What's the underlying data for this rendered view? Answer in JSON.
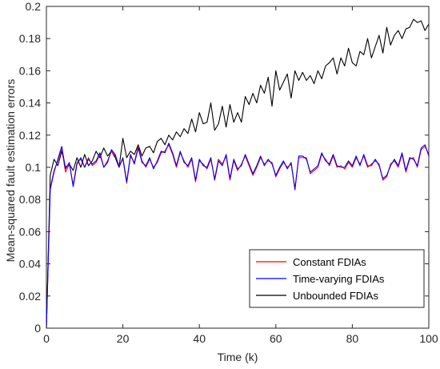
{
  "chart_data": {
    "type": "line",
    "xlabel": "Time (k)",
    "ylabel": "Mean-squared fault estimation errors",
    "xlim": [
      0,
      100
    ],
    "ylim": [
      0,
      0.2
    ],
    "xticks": [
      "0",
      "20",
      "40",
      "60",
      "80",
      "100"
    ],
    "yticks": [
      "0",
      "0.02",
      "0.04",
      "0.06",
      "0.08",
      "0.1",
      "0.12",
      "0.14",
      "0.16",
      "0.18",
      "0.2"
    ],
    "grid": false,
    "legend_position": "bottom-right",
    "x": [
      0,
      1,
      2,
      3,
      4,
      5,
      6,
      7,
      8,
      9,
      10,
      11,
      12,
      13,
      14,
      15,
      16,
      17,
      18,
      19,
      20,
      21,
      22,
      23,
      24,
      25,
      26,
      27,
      28,
      29,
      30,
      31,
      32,
      33,
      34,
      35,
      36,
      37,
      38,
      39,
      40,
      41,
      42,
      43,
      44,
      45,
      46,
      47,
      48,
      49,
      50,
      51,
      52,
      53,
      54,
      55,
      56,
      57,
      58,
      59,
      60,
      61,
      62,
      63,
      64,
      65,
      66,
      67,
      68,
      69,
      70,
      71,
      72,
      73,
      74,
      75,
      76,
      77,
      78,
      79,
      80,
      81,
      82,
      83,
      84,
      85,
      86,
      87,
      88,
      89,
      90,
      91,
      92,
      93,
      94,
      95,
      96,
      97,
      98,
      99,
      100
    ],
    "series": [
      {
        "name": "Constant FDIAs",
        "color": "#ff0000",
        "values": [
          0.0,
          0.087,
          0.098,
          0.104,
          0.112,
          0.097,
          0.102,
          0.089,
          0.103,
          0.105,
          0.1,
          0.106,
          0.101,
          0.103,
          0.108,
          0.1,
          0.104,
          0.11,
          0.107,
          0.101,
          0.105,
          0.09,
          0.107,
          0.103,
          0.113,
          0.104,
          0.1,
          0.105,
          0.1,
          0.103,
          0.109,
          0.11,
          0.114,
          0.108,
          0.1,
          0.109,
          0.104,
          0.1,
          0.105,
          0.091,
          0.104,
          0.102,
          0.099,
          0.105,
          0.093,
          0.105,
          0.102,
          0.107,
          0.092,
          0.104,
          0.098,
          0.102,
          0.107,
          0.101,
          0.095,
          0.1,
          0.106,
          0.102,
          0.104,
          0.103,
          0.094,
          0.099,
          0.103,
          0.1,
          0.102,
          0.087,
          0.106,
          0.106,
          0.106,
          0.096,
          0.098,
          0.1,
          0.108,
          0.105,
          0.101,
          0.107,
          0.1,
          0.101,
          0.099,
          0.103,
          0.1,
          0.106,
          0.102,
          0.107,
          0.1,
          0.102,
          0.104,
          0.102,
          0.092,
          0.094,
          0.102,
          0.104,
          0.1,
          0.108,
          0.097,
          0.105,
          0.106,
          0.1,
          0.111,
          0.113,
          0.108
        ]
      },
      {
        "name": "Time-varying FDIAs",
        "color": "#0000ff",
        "values": [
          0.0,
          0.086,
          0.097,
          0.105,
          0.113,
          0.099,
          0.103,
          0.088,
          0.102,
          0.106,
          0.1,
          0.105,
          0.102,
          0.104,
          0.109,
          0.1,
          0.103,
          0.111,
          0.108,
          0.1,
          0.106,
          0.091,
          0.108,
          0.102,
          0.112,
          0.103,
          0.101,
          0.106,
          0.099,
          0.104,
          0.11,
          0.109,
          0.115,
          0.109,
          0.101,
          0.11,
          0.103,
          0.101,
          0.106,
          0.092,
          0.105,
          0.101,
          0.1,
          0.106,
          0.092,
          0.104,
          0.101,
          0.108,
          0.093,
          0.105,
          0.099,
          0.101,
          0.108,
          0.102,
          0.096,
          0.101,
          0.107,
          0.101,
          0.105,
          0.102,
          0.095,
          0.1,
          0.104,
          0.099,
          0.103,
          0.086,
          0.107,
          0.107,
          0.105,
          0.097,
          0.099,
          0.101,
          0.109,
          0.104,
          0.102,
          0.108,
          0.101,
          0.1,
          0.1,
          0.104,
          0.101,
          0.107,
          0.101,
          0.108,
          0.101,
          0.101,
          0.105,
          0.101,
          0.093,
          0.095,
          0.101,
          0.105,
          0.101,
          0.109,
          0.098,
          0.106,
          0.105,
          0.101,
          0.112,
          0.114,
          0.107
        ]
      },
      {
        "name": "Unbounded FDIAs",
        "color": "#000000",
        "values": [
          0.0,
          0.095,
          0.105,
          0.101,
          0.11,
          0.1,
          0.102,
          0.098,
          0.106,
          0.1,
          0.108,
          0.101,
          0.104,
          0.11,
          0.106,
          0.112,
          0.107,
          0.11,
          0.106,
          0.1,
          0.118,
          0.106,
          0.11,
          0.108,
          0.114,
          0.107,
          0.112,
          0.113,
          0.109,
          0.116,
          0.118,
          0.114,
          0.12,
          0.117,
          0.122,
          0.119,
          0.124,
          0.121,
          0.13,
          0.122,
          0.134,
          0.127,
          0.128,
          0.14,
          0.123,
          0.127,
          0.138,
          0.125,
          0.139,
          0.128,
          0.134,
          0.128,
          0.144,
          0.139,
          0.146,
          0.14,
          0.151,
          0.146,
          0.156,
          0.138,
          0.16,
          0.148,
          0.153,
          0.158,
          0.143,
          0.16,
          0.154,
          0.159,
          0.154,
          0.157,
          0.152,
          0.16,
          0.155,
          0.163,
          0.165,
          0.168,
          0.158,
          0.168,
          0.163,
          0.174,
          0.165,
          0.163,
          0.172,
          0.17,
          0.18,
          0.168,
          0.175,
          0.182,
          0.171,
          0.187,
          0.176,
          0.182,
          0.185,
          0.18,
          0.186,
          0.187,
          0.192,
          0.19,
          0.191,
          0.185,
          0.189
        ]
      }
    ]
  }
}
